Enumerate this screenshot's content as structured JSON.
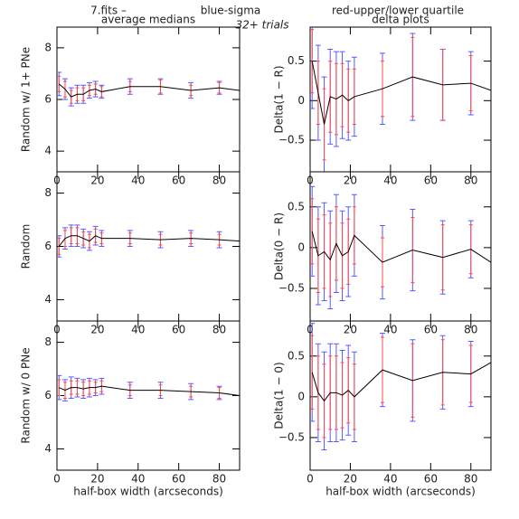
{
  "header": {
    "file": "7.fits  –",
    "subtitle": "32+ trials"
  },
  "legend": [
    {
      "name": "blue-sigma",
      "color": "#5a5aff"
    },
    {
      "name": "red-upper/lower quartile",
      "color": "#ff4a4a"
    }
  ],
  "chart_data": [
    {
      "type": "line",
      "title": "average medians",
      "ylabel": "Random w/ 1+ PNe",
      "x": [
        1,
        4,
        7,
        10,
        13,
        16,
        19,
        22,
        36,
        51,
        66,
        80,
        90
      ],
      "values": [
        6.6,
        6.4,
        6.1,
        6.2,
        6.2,
        6.35,
        6.4,
        6.3,
        6.5,
        6.5,
        6.35,
        6.45,
        6.35
      ],
      "sigma": [
        0.45,
        0.4,
        0.35,
        0.35,
        0.35,
        0.3,
        0.3,
        0.25,
        0.3,
        0.3,
        0.3,
        0.25,
        null
      ],
      "quartile": [
        0.3,
        0.3,
        0.25,
        0.25,
        0.25,
        0.2,
        0.2,
        0.2,
        0.2,
        0.25,
        0.2,
        0.2,
        null
      ],
      "xlim": [
        0,
        90
      ],
      "ylim": [
        3.2,
        8.8
      ],
      "xticks": [
        0,
        20,
        40,
        60,
        80
      ],
      "yticks": [
        4,
        6,
        8
      ]
    },
    {
      "type": "line",
      "title": "delta plots",
      "ylabel": "Delta(1 − R)",
      "x": [
        1,
        4,
        7,
        10,
        13,
        16,
        19,
        22,
        36,
        51,
        66,
        80,
        90
      ],
      "values": [
        0.5,
        0.1,
        -0.3,
        0.05,
        0.02,
        0.07,
        0.0,
        0.05,
        0.15,
        0.3,
        0.2,
        0.22,
        0.13
      ],
      "sigma": [
        0.6,
        0.6,
        0.6,
        0.6,
        0.6,
        0.55,
        0.5,
        0.5,
        0.45,
        0.55,
        0.45,
        0.4,
        null
      ],
      "quartile": [
        0.4,
        0.4,
        0.45,
        0.45,
        0.45,
        0.4,
        0.4,
        0.35,
        0.35,
        0.5,
        0.45,
        0.35,
        null
      ],
      "xlim": [
        0,
        90
      ],
      "ylim": [
        -0.9,
        0.93
      ],
      "xticks": [
        0,
        20,
        40,
        60,
        80
      ],
      "yticks": [
        {
          "value": -0.5,
          "label": "−0.5"
        },
        0,
        0.5
      ]
    },
    {
      "type": "line",
      "ylabel": "Random",
      "x": [
        1,
        4,
        7,
        10,
        13,
        16,
        19,
        22,
        36,
        51,
        66,
        80,
        90
      ],
      "values": [
        6.0,
        6.3,
        6.4,
        6.4,
        6.3,
        6.2,
        6.4,
        6.3,
        6.3,
        6.25,
        6.3,
        6.25,
        6.2
      ],
      "sigma": [
        0.4,
        0.4,
        0.4,
        0.4,
        0.35,
        0.35,
        0.35,
        0.3,
        0.3,
        0.3,
        0.3,
        0.3,
        null
      ],
      "quartile": [
        0.3,
        0.3,
        0.3,
        0.3,
        0.25,
        0.25,
        0.25,
        0.2,
        0.2,
        0.2,
        0.2,
        0.2,
        null
      ],
      "xlim": [
        0,
        90
      ],
      "ylim": [
        3.2,
        8.8
      ],
      "xticks": [
        0,
        20,
        40,
        60,
        80
      ],
      "yticks": [
        4,
        6,
        8
      ]
    },
    {
      "type": "line",
      "ylabel": "Delta(0 − R)",
      "x": [
        1,
        4,
        7,
        10,
        13,
        16,
        19,
        22,
        36,
        51,
        66,
        80,
        90
      ],
      "values": [
        0.2,
        -0.1,
        -0.05,
        -0.15,
        0.05,
        -0.1,
        -0.05,
        0.15,
        -0.18,
        -0.03,
        -0.12,
        -0.02,
        -0.18
      ],
      "sigma": [
        0.55,
        0.6,
        0.6,
        0.6,
        0.6,
        0.55,
        0.55,
        0.5,
        0.45,
        0.5,
        0.45,
        0.35,
        null
      ],
      "quartile": [
        0.4,
        0.45,
        0.45,
        0.45,
        0.45,
        0.4,
        0.4,
        0.35,
        0.3,
        0.4,
        0.4,
        0.3,
        null
      ],
      "xlim": [
        0,
        90
      ],
      "ylim": [
        -0.9,
        0.93
      ],
      "xticks": [
        0,
        20,
        40,
        60,
        80
      ],
      "yticks": [
        {
          "value": -0.5,
          "label": "−0.5"
        },
        0,
        0.5
      ]
    },
    {
      "type": "line",
      "ylabel": "Random w/ 0 PNe",
      "xlabel": "half-box width (arcseconds)",
      "x": [
        1,
        4,
        7,
        10,
        13,
        16,
        19,
        22,
        36,
        51,
        66,
        80,
        90
      ],
      "values": [
        6.3,
        6.2,
        6.3,
        6.3,
        6.25,
        6.3,
        6.3,
        6.35,
        6.2,
        6.2,
        6.15,
        6.1,
        6.0
      ],
      "sigma": [
        0.45,
        0.4,
        0.4,
        0.35,
        0.35,
        0.35,
        0.3,
        0.3,
        0.3,
        0.3,
        0.3,
        0.25,
        null
      ],
      "quartile": [
        0.3,
        0.3,
        0.25,
        0.25,
        0.25,
        0.25,
        0.2,
        0.2,
        0.2,
        0.2,
        0.2,
        0.2,
        null
      ],
      "xlim": [
        0,
        90
      ],
      "ylim": [
        3.2,
        8.8
      ],
      "xticks": [
        0,
        20,
        40,
        60,
        80
      ],
      "yticks": [
        4,
        6,
        8
      ]
    },
    {
      "type": "line",
      "ylabel": "Delta(1 − 0)",
      "xlabel": "half-box width (arcseconds)",
      "x": [
        1,
        4,
        7,
        10,
        13,
        16,
        19,
        22,
        36,
        51,
        66,
        80,
        90
      ],
      "values": [
        0.3,
        0.05,
        -0.05,
        0.05,
        0.05,
        0.02,
        0.08,
        0.0,
        0.33,
        0.2,
        0.3,
        0.28,
        0.42
      ],
      "sigma": [
        0.6,
        0.6,
        0.6,
        0.6,
        0.6,
        0.55,
        0.55,
        0.55,
        0.45,
        0.5,
        0.45,
        0.4,
        null
      ],
      "quartile": [
        0.45,
        0.45,
        0.45,
        0.45,
        0.45,
        0.4,
        0.4,
        0.4,
        0.4,
        0.45,
        0.4,
        0.35,
        null
      ],
      "xlim": [
        0,
        90
      ],
      "ylim": [
        -0.9,
        0.93
      ],
      "xticks": [
        0,
        20,
        40,
        60,
        80
      ],
      "yticks": [
        {
          "value": -0.5,
          "label": "−0.5"
        },
        0,
        0.5
      ]
    }
  ]
}
